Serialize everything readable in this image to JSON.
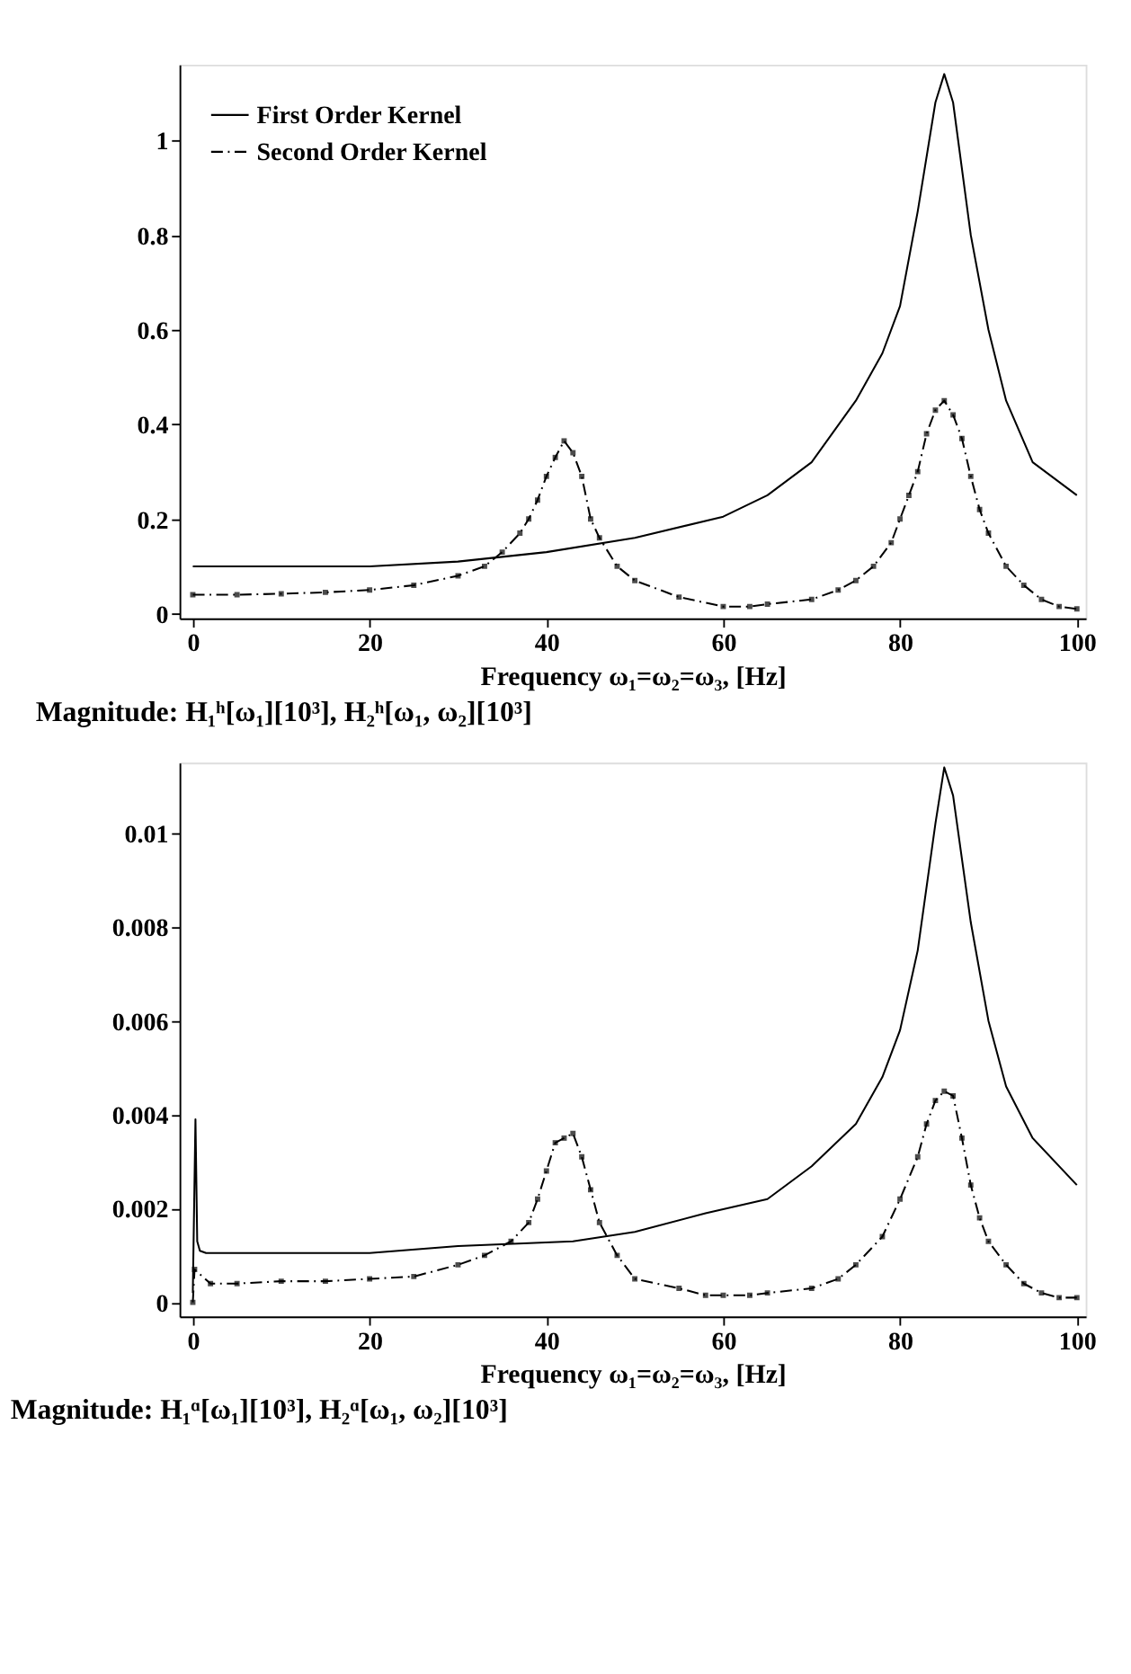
{
  "chart_data": [
    {
      "type": "line",
      "xlabel": "Frequency ω₁=ω₂=ω₃, [Hz]",
      "annotations": [
        "Magnitude: H₁ʰ[ω₁][10³], H₂ʰ[ω₁, ω₂][10³]"
      ],
      "xlim": [
        -1.5,
        101
      ],
      "xticks": [
        0,
        20,
        40,
        60,
        80,
        100
      ],
      "ylim": [
        -0.01,
        1.16
      ],
      "yticks": [
        0,
        0.2,
        0.4,
        0.6,
        0.8,
        1
      ],
      "grid": false,
      "legend": "top left",
      "series": [
        {
          "name": "First Order Kernel",
          "color": "#000000",
          "line_style": "solid",
          "marker": "none",
          "x": [
            0,
            10,
            20,
            30,
            40,
            50,
            60,
            65,
            70,
            75,
            78,
            80,
            82,
            84,
            85,
            86,
            88,
            90,
            92,
            95,
            100
          ],
          "values": [
            0.1,
            0.1,
            0.1,
            0.11,
            0.13,
            0.16,
            0.205,
            0.25,
            0.32,
            0.45,
            0.55,
            0.65,
            0.85,
            1.08,
            1.14,
            1.08,
            0.8,
            0.6,
            0.45,
            0.32,
            0.25
          ]
        },
        {
          "name": "Second Order Kernel",
          "color": "#000000",
          "line_style": "dashed",
          "marker": "square",
          "x": [
            0,
            5,
            10,
            15,
            20,
            25,
            30,
            33,
            35,
            37,
            38,
            39,
            40,
            41,
            42,
            43,
            44,
            45,
            46,
            48,
            50,
            55,
            60,
            63,
            65,
            70,
            73,
            75,
            77,
            79,
            80,
            81,
            82,
            83,
            84,
            85,
            86,
            87,
            88,
            89,
            90,
            92,
            94,
            96,
            98,
            100
          ],
          "values": [
            0.04,
            0.04,
            0.042,
            0.045,
            0.05,
            0.06,
            0.08,
            0.1,
            0.13,
            0.17,
            0.2,
            0.24,
            0.29,
            0.33,
            0.365,
            0.34,
            0.29,
            0.2,
            0.16,
            0.1,
            0.07,
            0.035,
            0.015,
            0.015,
            0.02,
            0.03,
            0.05,
            0.07,
            0.1,
            0.15,
            0.2,
            0.25,
            0.3,
            0.38,
            0.43,
            0.45,
            0.42,
            0.37,
            0.29,
            0.22,
            0.17,
            0.1,
            0.06,
            0.03,
            0.015,
            0.01
          ]
        }
      ]
    },
    {
      "type": "line",
      "xlabel": "Frequency ω₁=ω₂=ω₃, [Hz]",
      "annotations": [
        "Magnitude: H₁ᵅ[ω₁][10³], H₂ᵅ[ω₁, ω₂][10³]"
      ],
      "xlim": [
        -1.5,
        101
      ],
      "xticks": [
        0,
        20,
        40,
        60,
        80,
        100
      ],
      "ylim": [
        -0.0003,
        0.0115
      ],
      "yticks": [
        0,
        0.002,
        0.004,
        0.006,
        0.008,
        0.01
      ],
      "grid": false,
      "legend": "top left",
      "series": [
        {
          "name": "First Order Kernel",
          "color": "#000000",
          "line_style": "solid",
          "marker": "none",
          "x": [
            0,
            0.3,
            0.5,
            0.8,
            1.5,
            10,
            20,
            30,
            43,
            50,
            58,
            65,
            70,
            75,
            78,
            80,
            82,
            84,
            85,
            86,
            88,
            90,
            92,
            95,
            100
          ],
          "values": [
            0.0002,
            0.0039,
            0.0013,
            0.0011,
            0.00105,
            0.00105,
            0.00105,
            0.0012,
            0.0013,
            0.0015,
            0.0019,
            0.0022,
            0.0029,
            0.0038,
            0.0048,
            0.0058,
            0.0075,
            0.0102,
            0.0114,
            0.0108,
            0.0081,
            0.006,
            0.0046,
            0.0035,
            0.0025
          ]
        },
        {
          "name": "Second Order Kernel",
          "color": "#000000",
          "line_style": "dashed",
          "marker": "square",
          "x": [
            0,
            0.2,
            2,
            5,
            10,
            15,
            20,
            25,
            30,
            33,
            36,
            38,
            39,
            40,
            41,
            42,
            43,
            44,
            45,
            46,
            48,
            50,
            55,
            58,
            60,
            63,
            65,
            70,
            73,
            75,
            78,
            80,
            82,
            83,
            84,
            85,
            86,
            87,
            88,
            89,
            90,
            92,
            94,
            96,
            98,
            100
          ],
          "values": [
            0.0,
            0.0007,
            0.0004,
            0.0004,
            0.00045,
            0.00045,
            0.0005,
            0.00055,
            0.0008,
            0.001,
            0.0013,
            0.0017,
            0.0022,
            0.0028,
            0.0034,
            0.0035,
            0.0036,
            0.0031,
            0.0024,
            0.0017,
            0.001,
            0.0005,
            0.0003,
            0.00015,
            0.00015,
            0.00015,
            0.0002,
            0.0003,
            0.0005,
            0.0008,
            0.0014,
            0.0022,
            0.0031,
            0.0038,
            0.0043,
            0.0045,
            0.0044,
            0.0035,
            0.0025,
            0.0018,
            0.0013,
            0.0008,
            0.0004,
            0.0002,
            0.0001,
            0.0001
          ]
        }
      ]
    }
  ]
}
